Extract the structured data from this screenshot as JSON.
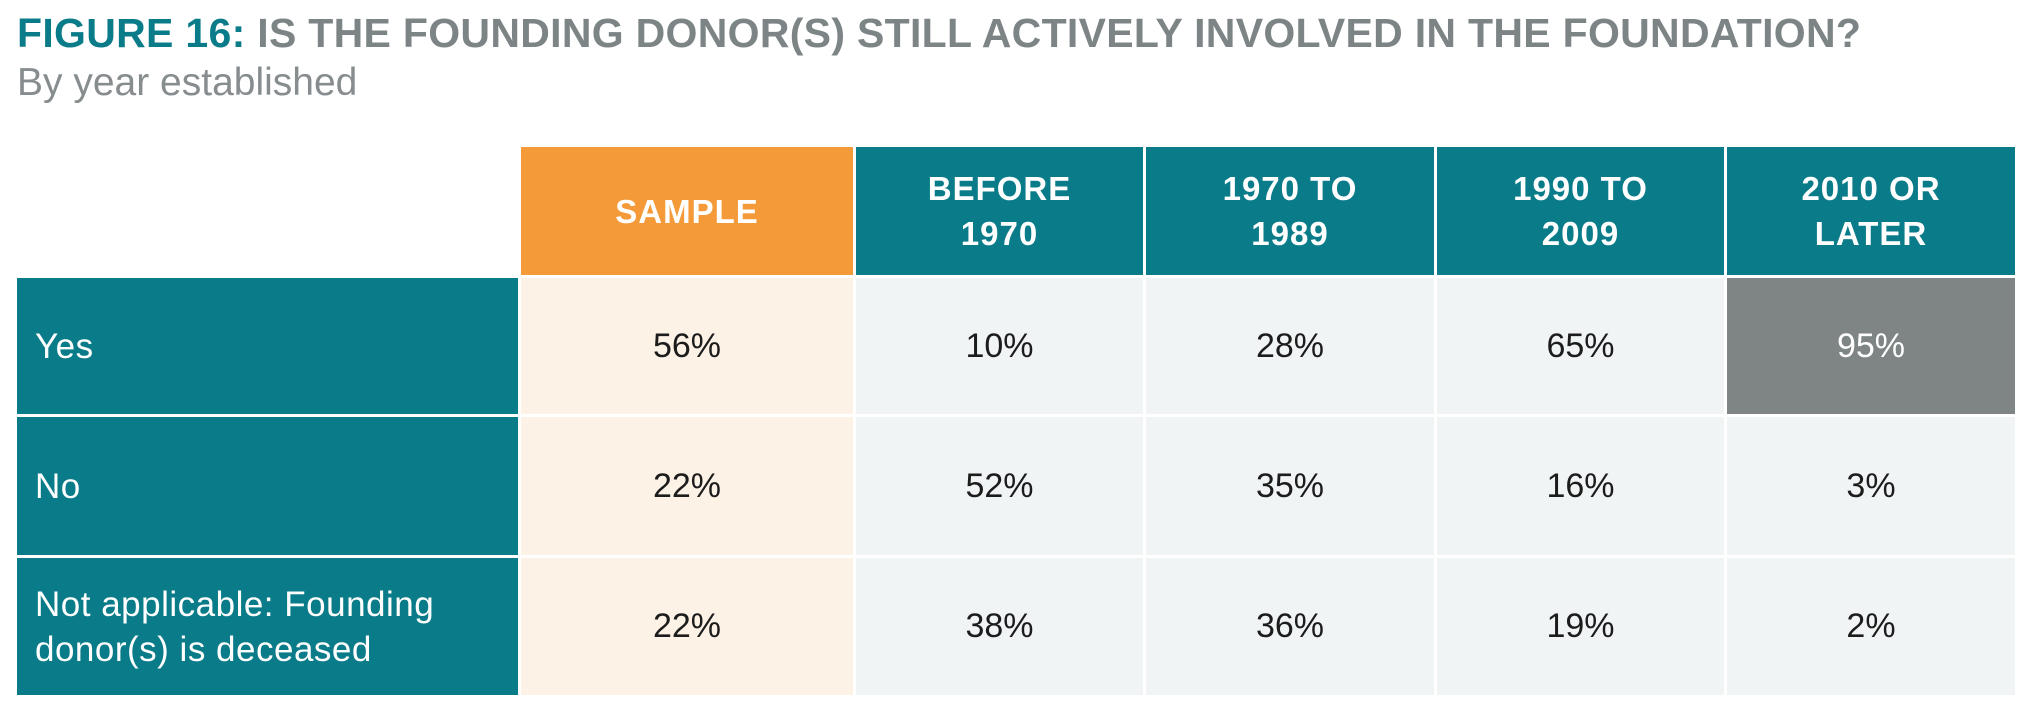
{
  "figure": {
    "label": "FIGURE 16:",
    "title": "IS THE FOUNDING DONOR(S) STILL ACTIVELY INVOLVED IN THE FOUNDATION?",
    "subtitle": "By year established"
  },
  "chart_data": {
    "type": "table",
    "title": "IS THE FOUNDING DONOR(S) STILL ACTIVELY INVOLVED IN THE FOUNDATION?",
    "subtitle": "By year established",
    "columns": [
      "SAMPLE",
      "BEFORE 1970",
      "1970 TO 1989",
      "1990 TO 2009",
      "2010 OR LATER"
    ],
    "rows": [
      {
        "label": "Yes",
        "values": [
          "56%",
          "10%",
          "28%",
          "65%",
          "95%"
        ]
      },
      {
        "label": "No",
        "values": [
          "22%",
          "52%",
          "35%",
          "16%",
          "3%"
        ]
      },
      {
        "label": "Not applicable: Founding donor(s) is deceased",
        "values": [
          "22%",
          "38%",
          "36%",
          "19%",
          "2%"
        ]
      }
    ],
    "highlight": {
      "row": "Yes",
      "column": "2010 OR LATER"
    }
  },
  "colors": {
    "teal": "#0a7c89",
    "orange": "#f49a38",
    "sample_bg": "#fdf2e6",
    "cell_bg": "#f1f4f5",
    "highlight": "#7f8585",
    "title_gray": "#7d8486"
  }
}
